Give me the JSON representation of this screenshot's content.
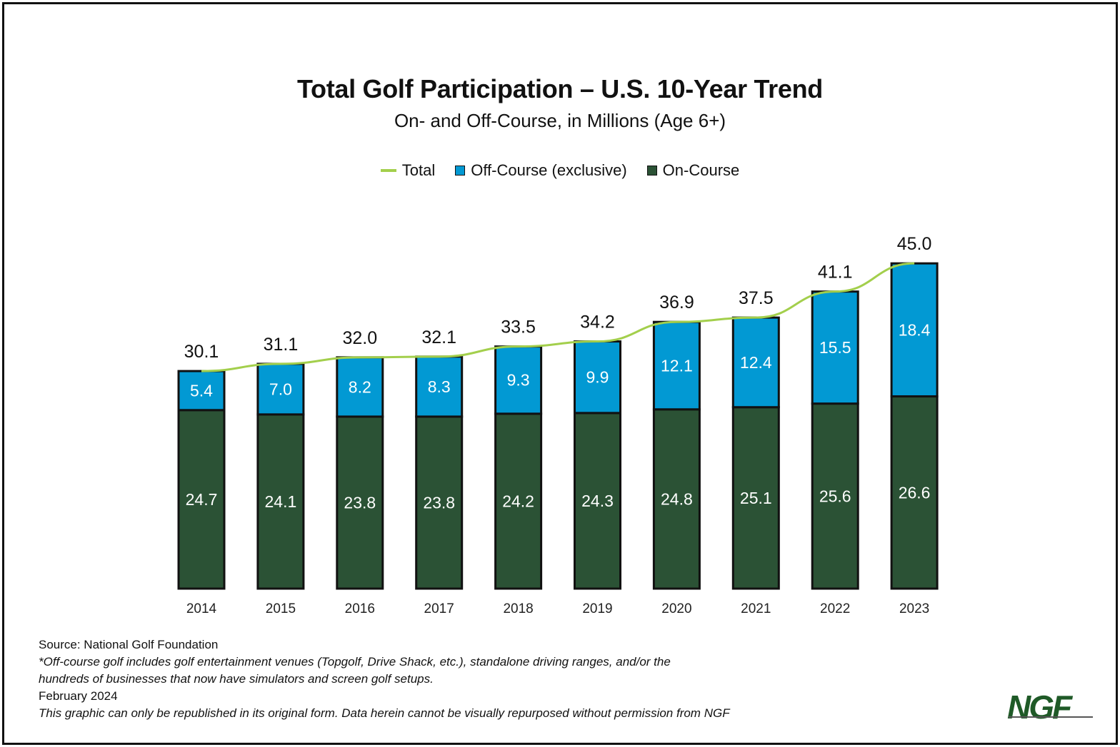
{
  "chart_data": {
    "type": "bar",
    "stacked": true,
    "title": "Total Golf Participation – U.S. 10-Year Trend",
    "subtitle": "On- and Off-Course, in Millions (Age 6+)",
    "xlabel": "",
    "ylabel": "",
    "ylim": [
      0,
      45
    ],
    "grid": false,
    "legend_position": "top-center",
    "categories": [
      "2014",
      "2015",
      "2016",
      "2017",
      "2018",
      "2019",
      "2020",
      "2021",
      "2022",
      "2023"
    ],
    "series": [
      {
        "name": "On-Course",
        "kind": "bar",
        "color": "#2b5235",
        "values": [
          24.7,
          24.1,
          23.8,
          23.8,
          24.2,
          24.3,
          24.8,
          25.1,
          25.6,
          26.6
        ]
      },
      {
        "name": "Off-Course (exclusive)",
        "kind": "bar",
        "color": "#0299d3",
        "values": [
          5.4,
          7.0,
          8.2,
          8.3,
          9.3,
          9.9,
          12.1,
          12.4,
          15.5,
          18.4
        ]
      },
      {
        "name": "Total",
        "kind": "line",
        "color": "#a3cf4c",
        "values": [
          30.1,
          31.1,
          32.0,
          32.1,
          33.5,
          34.2,
          36.9,
          37.5,
          41.1,
          45.0
        ]
      }
    ],
    "value_labels": {
      "on_course": [
        "24.7",
        "24.1",
        "23.8",
        "23.8",
        "24.2",
        "24.3",
        "24.8",
        "25.1",
        "25.6",
        "26.6"
      ],
      "off_course": [
        "5.4",
        "7.0",
        "8.2",
        "8.3",
        "9.3",
        "9.9",
        "12.1",
        "12.4",
        "15.5",
        "18.4"
      ],
      "total": [
        "30.1",
        "31.1",
        "32.0",
        "32.1",
        "33.5",
        "34.2",
        "36.9",
        "37.5",
        "41.1",
        "45.0"
      ]
    }
  },
  "legend": [
    {
      "label": "Total",
      "color": "#a3cf4c",
      "symbol": "line"
    },
    {
      "label": "Off-Course (exclusive)",
      "color": "#0299d3",
      "symbol": "square"
    },
    {
      "label": "On-Course",
      "color": "#2b5235",
      "symbol": "square"
    }
  ],
  "footer": {
    "source": "Source: National Golf Foundation",
    "note_line1": "*Off-course golf includes golf entertainment venues (Topgolf, Drive Shack, etc.), standalone driving ranges, and/or the",
    "note_line2": "hundreds of businesses that now have simulators and screen golf setups.",
    "date": "February 2024",
    "disclaimer": "This graphic can only be republished in its original form. Data herein cannot be visually repurposed without permission from NGF"
  },
  "logo": {
    "text": "NGF",
    "color": "#1f5a27"
  }
}
